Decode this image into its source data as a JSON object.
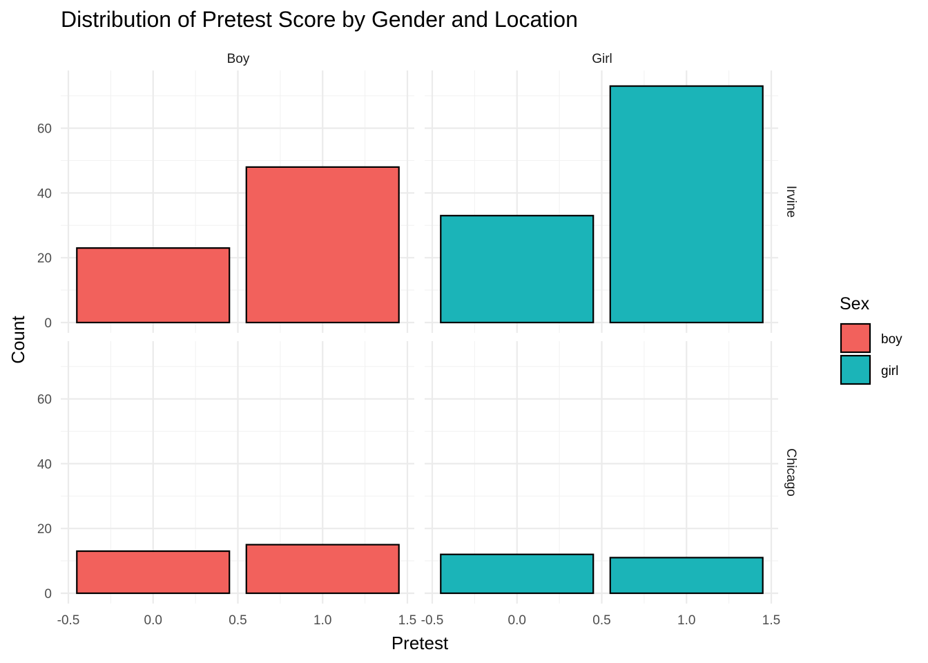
{
  "chart_data": {
    "type": "bar",
    "title": "Distribution of Pretest Score by Gender and Location",
    "xlabel": "Pretest",
    "ylabel": "Count",
    "xlim": [
      -0.5,
      1.5
    ],
    "ylim": [
      0,
      75
    ],
    "x_ticks": [
      "-0.5",
      "0.0",
      "0.5",
      "1.0",
      "1.5"
    ],
    "y_ticks": [
      "0",
      "20",
      "40",
      "60"
    ],
    "grid": true,
    "facet_columns": [
      "Boy",
      "Girl"
    ],
    "facet_rows": [
      "Irvine",
      "Chicago"
    ],
    "categories": [
      0,
      1
    ],
    "panels": [
      {
        "column": "Boy",
        "row": "Irvine",
        "fill": "boy",
        "values": [
          23,
          48
        ]
      },
      {
        "column": "Girl",
        "row": "Irvine",
        "fill": "girl",
        "values": [
          33,
          73
        ]
      },
      {
        "column": "Boy",
        "row": "Chicago",
        "fill": "boy",
        "values": [
          13,
          15
        ]
      },
      {
        "column": "Girl",
        "row": "Chicago",
        "fill": "girl",
        "values": [
          12,
          11
        ]
      }
    ],
    "legend": {
      "title": "Sex",
      "position": "right",
      "entries": [
        {
          "label": "boy",
          "color": "#F2615C"
        },
        {
          "label": "girl",
          "color": "#1BB4B8"
        }
      ]
    }
  }
}
